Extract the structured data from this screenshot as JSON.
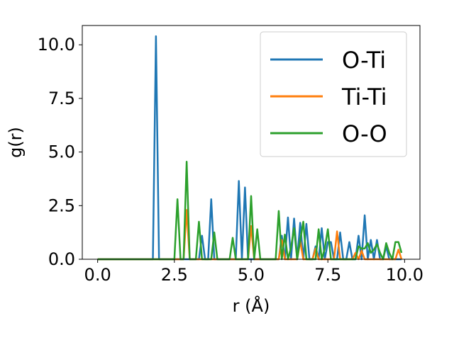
{
  "chart_data": {
    "type": "line",
    "title": "",
    "xlabel": "r (Å)",
    "ylabel": "g(r)",
    "xlim": [
      -0.5,
      10.5
    ],
    "ylim": [
      0,
      10.9
    ],
    "xticks": [
      0.0,
      2.5,
      5.0,
      7.5,
      10.0
    ],
    "xtick_labels": [
      "0.0",
      "2.5",
      "5.0",
      "7.5",
      "10.0"
    ],
    "yticks": [
      0.0,
      2.5,
      5.0,
      7.5,
      10.0
    ],
    "ytick_labels": [
      "0.0",
      "2.5",
      "5.0",
      "7.5",
      "10.0"
    ],
    "grid": false,
    "legend_position": "top-right",
    "series": [
      {
        "name": "O-Ti",
        "color": "#1f77b4",
        "x": [
          0.0,
          1.8,
          1.9,
          2.0,
          3.3,
          3.4,
          3.5,
          3.6,
          3.7,
          3.8,
          4.5,
          4.6,
          4.7,
          4.8,
          4.9,
          5.9,
          6.0,
          6.1,
          6.2,
          6.3,
          6.4,
          6.5,
          6.6,
          6.7,
          6.8,
          6.9,
          7.0,
          7.1,
          7.2,
          7.3,
          7.4,
          7.5,
          7.6,
          7.7,
          7.8,
          7.9,
          8.0,
          8.1,
          8.2,
          8.3,
          8.4,
          8.5,
          8.6,
          8.7,
          8.8,
          8.9,
          9.0,
          9.1,
          9.2,
          9.3,
          9.4,
          9.5,
          9.6,
          9.7,
          9.8,
          9.9
        ],
        "y": [
          0.0,
          0.0,
          10.4,
          0.0,
          0.0,
          1.1,
          0.0,
          0.0,
          2.8,
          0.0,
          0.0,
          3.65,
          0.0,
          3.35,
          0.0,
          0.0,
          1.1,
          0.0,
          1.95,
          0.0,
          1.9,
          0.0,
          1.7,
          0.0,
          1.65,
          0.0,
          0.0,
          0.6,
          0.0,
          1.45,
          0.0,
          0.8,
          0.8,
          0.0,
          0.0,
          1.25,
          0.0,
          0.0,
          0.8,
          0.0,
          0.0,
          1.1,
          0.0,
          2.05,
          0.0,
          0.9,
          0.0,
          0.9,
          0.0,
          0.0,
          0.6,
          0.0,
          0.0,
          0.0,
          0.0,
          0.0
        ]
      },
      {
        "name": "Ti-Ti",
        "color": "#ff7f0e",
        "x": [
          0.0,
          2.8,
          2.9,
          3.0,
          4.9,
          5.0,
          5.1,
          5.9,
          6.0,
          6.1,
          6.5,
          6.6,
          6.7,
          7.0,
          7.1,
          7.2,
          7.7,
          7.8,
          7.9,
          8.3,
          8.4,
          8.5,
          8.6,
          8.7,
          8.8,
          9.7,
          9.8,
          9.9
        ],
        "y": [
          0.0,
          0.0,
          2.3,
          0.0,
          0.0,
          1.55,
          0.0,
          0.0,
          0.9,
          0.0,
          0.0,
          0.85,
          0.0,
          0.0,
          0.5,
          0.0,
          0.0,
          1.3,
          0.0,
          0.0,
          0.3,
          0.0,
          0.4,
          0.0,
          0.0,
          0.0,
          0.45,
          0.0
        ]
      },
      {
        "name": "O-O",
        "color": "#2ca02c",
        "x": [
          0.0,
          2.5,
          2.6,
          2.7,
          2.8,
          2.9,
          3.0,
          3.1,
          3.2,
          3.3,
          3.4,
          3.5,
          3.6,
          3.7,
          3.8,
          3.9,
          4.0,
          4.1,
          4.2,
          4.3,
          4.4,
          4.5,
          4.6,
          4.7,
          4.8,
          4.9,
          5.0,
          5.1,
          5.2,
          5.3,
          5.4,
          5.5,
          5.6,
          5.7,
          5.8,
          5.9,
          6.0,
          6.1,
          6.2,
          6.3,
          6.4,
          6.5,
          6.6,
          6.7,
          6.8,
          6.9,
          7.0,
          7.1,
          7.2,
          7.3,
          7.4,
          7.5,
          7.6,
          7.7,
          7.8,
          7.9,
          8.0,
          8.1,
          8.2,
          8.3,
          8.4,
          8.5,
          8.6,
          8.7,
          8.8,
          8.9,
          9.0,
          9.1,
          9.2,
          9.3,
          9.4,
          9.5,
          9.6,
          9.7,
          9.8,
          9.9
        ],
        "y": [
          0.0,
          0.0,
          2.8,
          0.0,
          0.0,
          4.55,
          0.0,
          0.0,
          0.0,
          1.75,
          0.0,
          0.0,
          0.0,
          0.0,
          1.25,
          0.0,
          0.0,
          0.0,
          0.0,
          0.0,
          1.0,
          0.0,
          0.0,
          0.0,
          0.0,
          0.0,
          2.95,
          0.0,
          1.4,
          0.0,
          0.0,
          0.0,
          0.0,
          0.0,
          0.0,
          2.25,
          0.0,
          1.15,
          0.0,
          0.55,
          1.45,
          0.0,
          0.9,
          1.75,
          0.0,
          0.0,
          0.0,
          0.0,
          1.4,
          0.0,
          0.5,
          1.4,
          0.0,
          0.0,
          0.0,
          0.0,
          0.0,
          0.0,
          0.0,
          0.0,
          0.0,
          0.6,
          0.5,
          0.5,
          0.75,
          0.3,
          0.45,
          0.7,
          0.3,
          0.0,
          0.75,
          0.3,
          0.0,
          0.8,
          0.8,
          0.3
        ]
      }
    ]
  }
}
